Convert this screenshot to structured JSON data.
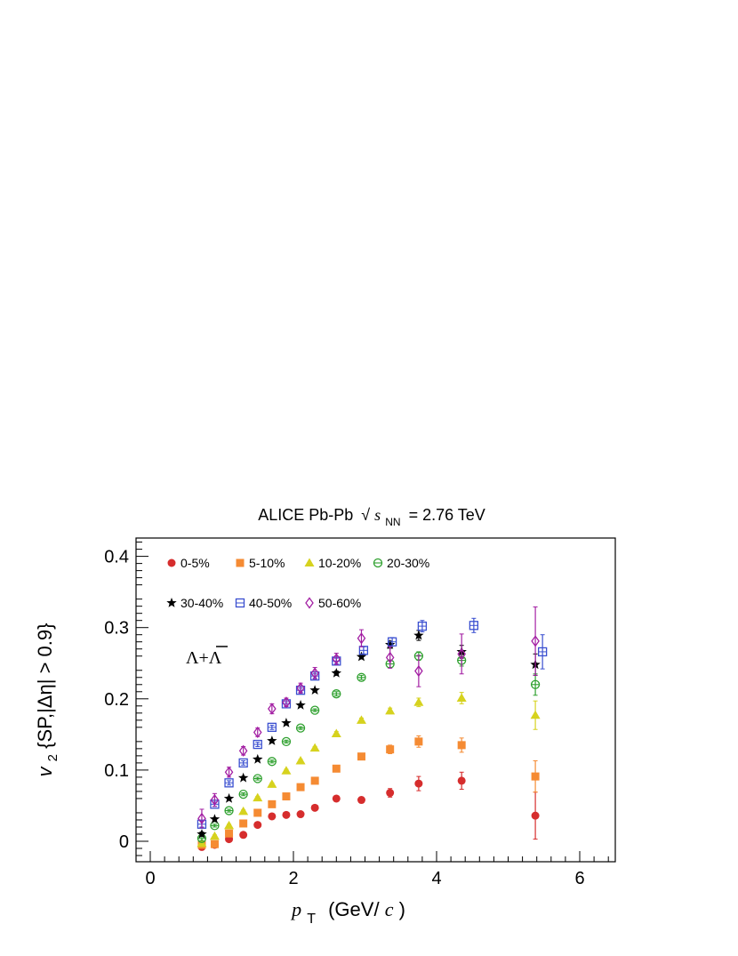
{
  "chart_data": {
    "type": "scatter",
    "title_parts": {
      "experiment": "ALICE Pb-Pb",
      "sqrt": "√",
      "s": "s",
      "nn": "NN",
      "energy": "= 2.76 TeV"
    },
    "annotation": "Λ+Λ",
    "xlabel": {
      "p": "p",
      "t": "T",
      "unit_open": "(GeV/",
      "c": "c",
      "unit_close": ")"
    },
    "ylabel": {
      "v": "v",
      "sub": "2",
      "rest": "{SP,|Δη| > 0.9}"
    },
    "xlim": [
      -0.2,
      6.5
    ],
    "ylim": [
      -0.03,
      0.43
    ],
    "xticks": [
      0,
      2,
      4,
      6
    ],
    "xtick_labels": [
      "0",
      "2",
      "4",
      "6"
    ],
    "yticks": [
      0,
      0.1,
      0.2,
      0.3,
      0.4
    ],
    "ytick_labels": [
      "0",
      "0.1",
      "0.2",
      "0.3",
      "0.4"
    ],
    "grid": false,
    "legend_position": "top-left",
    "series": [
      {
        "name": "0-5%",
        "color": "#d62d2d",
        "marker": "circle",
        "points": [
          [
            0.72,
            -0.008,
            0.003
          ],
          [
            0.9,
            -0.005,
            0.003
          ],
          [
            1.1,
            0.003,
            0.002
          ],
          [
            1.3,
            0.009,
            0.002
          ],
          [
            1.5,
            0.023,
            0.002
          ],
          [
            1.7,
            0.035,
            0.002
          ],
          [
            1.9,
            0.037,
            0.002
          ],
          [
            2.1,
            0.038,
            0.002
          ],
          [
            2.3,
            0.047,
            0.003
          ],
          [
            2.6,
            0.06,
            0.003
          ],
          [
            2.95,
            0.058,
            0.004
          ],
          [
            3.35,
            0.068,
            0.006
          ],
          [
            3.75,
            0.081,
            0.01
          ],
          [
            4.35,
            0.085,
            0.012
          ],
          [
            5.38,
            0.036,
            0.033
          ]
        ]
      },
      {
        "name": "5-10%",
        "color": "#f58b33",
        "marker": "square",
        "points": [
          [
            0.72,
            -0.005,
            0.003
          ],
          [
            0.9,
            -0.004,
            0.003
          ],
          [
            1.1,
            0.011,
            0.002
          ],
          [
            1.3,
            0.025,
            0.002
          ],
          [
            1.5,
            0.04,
            0.002
          ],
          [
            1.7,
            0.052,
            0.002
          ],
          [
            1.9,
            0.063,
            0.002
          ],
          [
            2.1,
            0.076,
            0.002
          ],
          [
            2.3,
            0.085,
            0.003
          ],
          [
            2.6,
            0.102,
            0.003
          ],
          [
            2.95,
            0.119,
            0.004
          ],
          [
            3.35,
            0.129,
            0.006
          ],
          [
            3.75,
            0.14,
            0.008
          ],
          [
            4.35,
            0.135,
            0.01
          ],
          [
            5.38,
            0.091,
            0.022
          ]
        ]
      },
      {
        "name": "10-20%",
        "color": "#d6d21e",
        "marker": "triangle",
        "points": [
          [
            0.72,
            -0.003,
            0.003
          ],
          [
            0.9,
            0.007,
            0.002
          ],
          [
            1.1,
            0.022,
            0.002
          ],
          [
            1.3,
            0.042,
            0.002
          ],
          [
            1.5,
            0.061,
            0.002
          ],
          [
            1.7,
            0.08,
            0.002
          ],
          [
            1.9,
            0.099,
            0.002
          ],
          [
            2.1,
            0.113,
            0.002
          ],
          [
            2.3,
            0.131,
            0.002
          ],
          [
            2.6,
            0.151,
            0.003
          ],
          [
            2.95,
            0.17,
            0.003
          ],
          [
            3.35,
            0.183,
            0.004
          ],
          [
            3.75,
            0.195,
            0.006
          ],
          [
            4.35,
            0.201,
            0.008
          ],
          [
            5.38,
            0.177,
            0.02
          ]
        ]
      },
      {
        "name": "20-30%",
        "color": "#2ea02e",
        "marker": "circle-open",
        "points": [
          [
            0.72,
            0.004,
            0.003
          ],
          [
            0.9,
            0.022,
            0.002
          ],
          [
            1.1,
            0.043,
            0.002
          ],
          [
            1.3,
            0.066,
            0.002
          ],
          [
            1.5,
            0.088,
            0.002
          ],
          [
            1.7,
            0.112,
            0.002
          ],
          [
            1.9,
            0.14,
            0.002
          ],
          [
            2.1,
            0.159,
            0.002
          ],
          [
            2.3,
            0.184,
            0.002
          ],
          [
            2.6,
            0.207,
            0.003
          ],
          [
            2.95,
            0.23,
            0.003
          ],
          [
            3.35,
            0.249,
            0.005
          ],
          [
            3.75,
            0.26,
            0.006
          ],
          [
            4.35,
            0.254,
            0.008
          ],
          [
            5.38,
            0.22,
            0.015
          ]
        ]
      },
      {
        "name": "30-40%",
        "color": "#000000",
        "marker": "star",
        "points": [
          [
            0.72,
            0.01,
            0.003
          ],
          [
            0.9,
            0.031,
            0.002
          ],
          [
            1.1,
            0.06,
            0.002
          ],
          [
            1.3,
            0.089,
            0.002
          ],
          [
            1.5,
            0.115,
            0.002
          ],
          [
            1.7,
            0.141,
            0.002
          ],
          [
            1.9,
            0.166,
            0.002
          ],
          [
            2.1,
            0.191,
            0.002
          ],
          [
            2.3,
            0.212,
            0.002
          ],
          [
            2.6,
            0.236,
            0.003
          ],
          [
            2.95,
            0.259,
            0.003
          ],
          [
            3.35,
            0.276,
            0.005
          ],
          [
            3.75,
            0.289,
            0.007
          ],
          [
            4.35,
            0.266,
            0.009
          ],
          [
            5.38,
            0.248,
            0.015
          ]
        ]
      },
      {
        "name": "40-50%",
        "color": "#3a4fd0",
        "marker": "square-open",
        "points": [
          [
            0.72,
            0.024,
            0.004
          ],
          [
            0.9,
            0.052,
            0.003
          ],
          [
            1.1,
            0.082,
            0.003
          ],
          [
            1.3,
            0.11,
            0.003
          ],
          [
            1.5,
            0.136,
            0.003
          ],
          [
            1.7,
            0.16,
            0.003
          ],
          [
            1.9,
            0.193,
            0.003
          ],
          [
            2.1,
            0.212,
            0.003
          ],
          [
            2.3,
            0.232,
            0.003
          ],
          [
            2.6,
            0.253,
            0.004
          ],
          [
            2.98,
            0.268,
            0.005
          ],
          [
            3.38,
            0.28,
            0.006
          ],
          [
            3.8,
            0.302,
            0.008
          ],
          [
            4.52,
            0.303,
            0.01
          ],
          [
            5.48,
            0.266,
            0.024
          ]
        ]
      },
      {
        "name": "50-60%",
        "color": "#a31fa3",
        "marker": "diamond-open",
        "points": [
          [
            0.72,
            0.032,
            0.013
          ],
          [
            0.9,
            0.058,
            0.009
          ],
          [
            1.1,
            0.097,
            0.007
          ],
          [
            1.3,
            0.127,
            0.006
          ],
          [
            1.5,
            0.153,
            0.006
          ],
          [
            1.7,
            0.186,
            0.007
          ],
          [
            1.9,
            0.195,
            0.006
          ],
          [
            2.1,
            0.215,
            0.007
          ],
          [
            2.3,
            0.236,
            0.008
          ],
          [
            2.6,
            0.256,
            0.008
          ],
          [
            2.95,
            0.285,
            0.012
          ],
          [
            3.35,
            0.258,
            0.015
          ],
          [
            3.75,
            0.239,
            0.022
          ],
          [
            4.35,
            0.263,
            0.028
          ],
          [
            5.38,
            0.281,
            0.048
          ]
        ]
      }
    ]
  }
}
